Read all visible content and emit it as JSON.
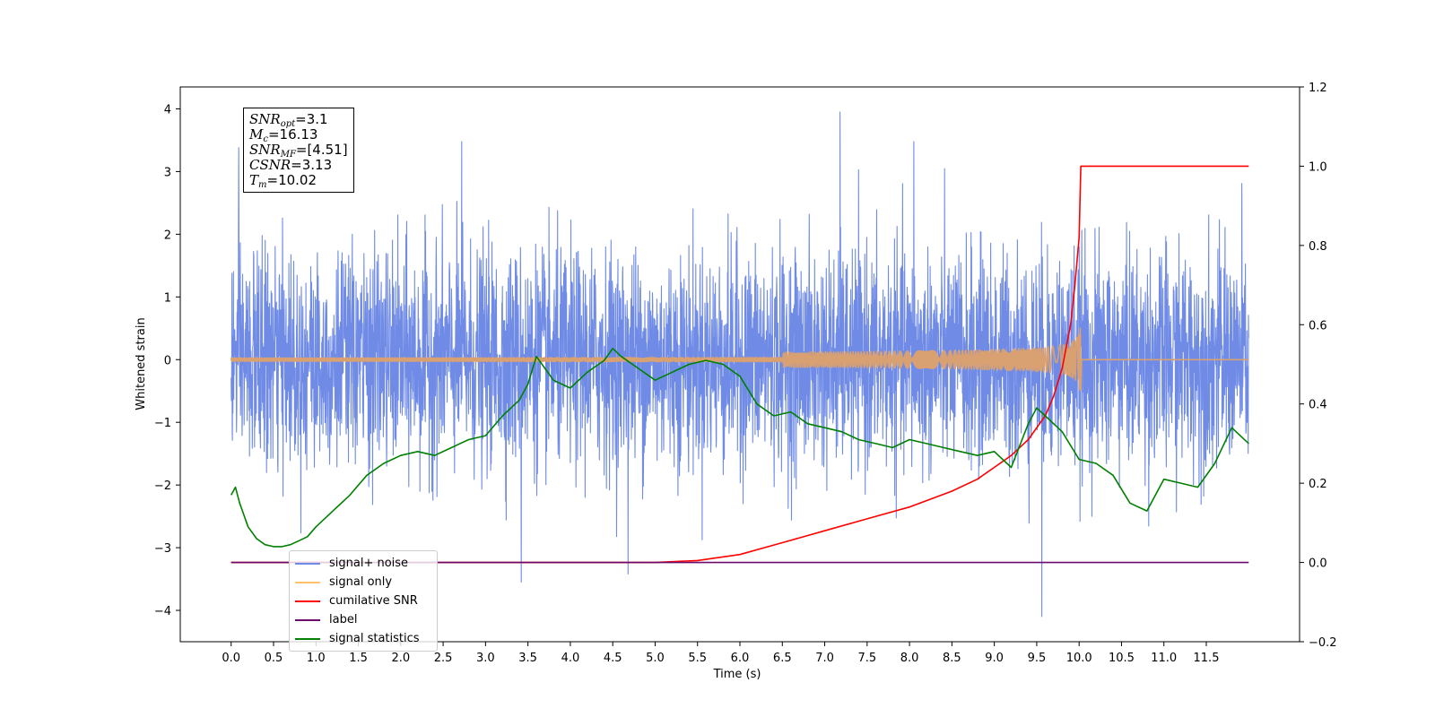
{
  "chart_data": {
    "type": "line",
    "title": "",
    "xlabel": "Time (s)",
    "ylabel": "Whitened strain",
    "y2label": "",
    "xlim": [
      -0.6,
      12.6
    ],
    "ylim": [
      -4.5,
      4.35
    ],
    "y2lim": [
      -0.2,
      1.2
    ],
    "xticks": [
      "0.0",
      "0.5",
      "1.0",
      "1.5",
      "2.0",
      "2.5",
      "3.0",
      "3.5",
      "4.0",
      "4.5",
      "5.0",
      "5.5",
      "6.0",
      "6.5",
      "7.0",
      "7.5",
      "8.0",
      "8.5",
      "9.0",
      "9.5",
      "10.0",
      "10.5",
      "11.0",
      "11.5"
    ],
    "yticks": [
      "4",
      "3",
      "2",
      "1",
      "0",
      "−1",
      "−2",
      "−3",
      "−4"
    ],
    "y2ticks": [
      "1.2",
      "1.0",
      "0.8",
      "0.6",
      "0.4",
      "0.2",
      "0.0",
      "−0.2"
    ],
    "grid": false,
    "legend_position": "lower-left",
    "annotation_lines": [
      {
        "name": "SNR",
        "sub": "opt",
        "value": "=3.1"
      },
      {
        "name": "M",
        "sub": "c",
        "value": "=16.13"
      },
      {
        "name": "SNR",
        "sub": "MF",
        "value": "=[4.51]"
      },
      {
        "name": "CSNR",
        "sub": "",
        "value": "=3.13"
      },
      {
        "name": "T",
        "sub": "m",
        "value": "=10.02"
      }
    ],
    "series": [
      {
        "name": "signal+ noise",
        "color": "#6f8be6",
        "axis": "left",
        "kind": "gaussian-noise",
        "std": 0.85,
        "x_range": [
          0,
          12
        ],
        "peaks": [
          {
            "x": 7.18,
            "y": 3.95
          },
          {
            "x": 0.09,
            "y": 3.38
          },
          {
            "x": 2.72,
            "y": 3.48
          },
          {
            "x": 8.05,
            "y": 3.48
          },
          {
            "x": 9.56,
            "y": -4.1
          },
          {
            "x": 3.42,
            "y": -3.55
          },
          {
            "x": 4.68,
            "y": -3.42
          }
        ]
      },
      {
        "name": "signal only",
        "color": "#ffc266",
        "axis": "left",
        "kind": "chirp",
        "merger_time": 10.02,
        "peak_amplitude": 0.65
      },
      {
        "name": "cumilative SNR",
        "color": "#ff0000",
        "axis": "right",
        "x": [
          0,
          5.0,
          5.5,
          6.0,
          6.5,
          7.0,
          7.5,
          8.0,
          8.5,
          8.8,
          9.0,
          9.2,
          9.4,
          9.6,
          9.7,
          9.8,
          9.9,
          9.95,
          10.0,
          10.02,
          12.0
        ],
        "y": [
          0,
          0,
          0.005,
          0.02,
          0.05,
          0.08,
          0.11,
          0.14,
          0.18,
          0.21,
          0.24,
          0.27,
          0.31,
          0.37,
          0.42,
          0.49,
          0.6,
          0.7,
          0.82,
          1.0,
          1.0
        ]
      },
      {
        "name": "label",
        "color": "#6a0a6a",
        "axis": "right",
        "x": [
          0,
          12.0
        ],
        "y": [
          0,
          0
        ]
      },
      {
        "name": "signal statistics",
        "color": "#008000",
        "axis": "right",
        "x": [
          0,
          0.05,
          0.1,
          0.15,
          0.2,
          0.3,
          0.4,
          0.5,
          0.6,
          0.7,
          0.8,
          0.9,
          1.0,
          1.2,
          1.4,
          1.6,
          1.8,
          2.0,
          2.2,
          2.4,
          2.6,
          2.8,
          3.0,
          3.2,
          3.4,
          3.5,
          3.6,
          3.7,
          3.8,
          4.0,
          4.2,
          4.4,
          4.5,
          4.6,
          4.8,
          5.0,
          5.2,
          5.4,
          5.6,
          5.8,
          6.0,
          6.2,
          6.4,
          6.6,
          6.8,
          7.0,
          7.2,
          7.4,
          7.6,
          7.8,
          8.0,
          8.2,
          8.4,
          8.6,
          8.8,
          9.0,
          9.2,
          9.4,
          9.5,
          9.6,
          9.8,
          10.0,
          10.2,
          10.4,
          10.6,
          10.8,
          11.0,
          11.2,
          11.4,
          11.6,
          11.8,
          12.0
        ],
        "y": [
          0.17,
          0.19,
          0.15,
          0.12,
          0.09,
          0.06,
          0.045,
          0.04,
          0.04,
          0.045,
          0.055,
          0.065,
          0.09,
          0.13,
          0.17,
          0.22,
          0.25,
          0.27,
          0.28,
          0.27,
          0.29,
          0.31,
          0.32,
          0.37,
          0.41,
          0.45,
          0.52,
          0.49,
          0.46,
          0.44,
          0.48,
          0.51,
          0.54,
          0.52,
          0.49,
          0.46,
          0.48,
          0.5,
          0.51,
          0.5,
          0.47,
          0.4,
          0.37,
          0.38,
          0.35,
          0.34,
          0.33,
          0.31,
          0.3,
          0.29,
          0.31,
          0.3,
          0.29,
          0.28,
          0.27,
          0.28,
          0.24,
          0.35,
          0.39,
          0.37,
          0.33,
          0.26,
          0.25,
          0.22,
          0.15,
          0.13,
          0.21,
          0.2,
          0.19,
          0.25,
          0.34,
          0.3
        ]
      }
    ]
  }
}
